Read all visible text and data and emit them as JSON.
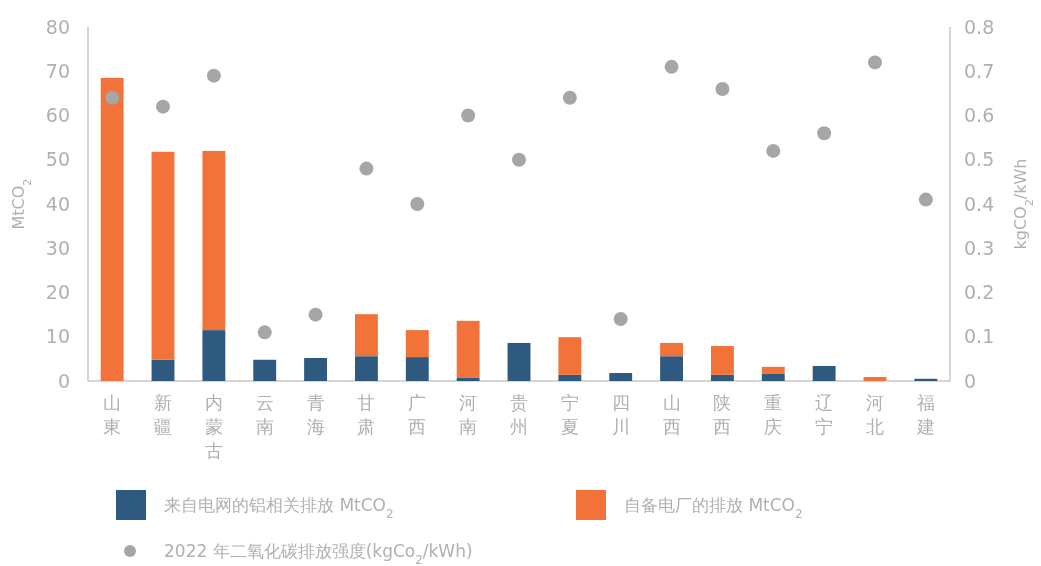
{
  "chart_data": {
    "type": "bar",
    "stacked": true,
    "categories": [
      "山東",
      "新疆",
      "内蒙古",
      "云南",
      "青海",
      "甘肃",
      "广西",
      "河南",
      "贵州",
      "宁夏",
      "四川",
      "山西",
      "陕西",
      "重庆",
      "辽宁",
      "河北",
      "福建"
    ],
    "series": [
      {
        "name": "来自电网的铝相关排放 MtCO$_{2}$",
        "color": "#2e5a80",
        "values": [
          0,
          4.8,
          11.5,
          4.8,
          5.2,
          5.6,
          5.4,
          0.7,
          8.6,
          1.4,
          1.8,
          5.6,
          1.4,
          1.6,
          3.4,
          0,
          0.5
        ]
      },
      {
        "name": "自备电厂的排放 MtCO$_{2}$",
        "color": "#f2733a",
        "values": [
          68.5,
          47.0,
          40.5,
          0,
          0,
          9.5,
          6.1,
          12.9,
          0,
          8.5,
          0,
          3.0,
          6.5,
          1.6,
          0,
          0.9,
          0
        ]
      },
      {
        "name": "2022 年二氧化碳排放强度(kgCo$_{2}$/kWh)",
        "type": "scatter",
        "axis": "y2",
        "marker": "circle",
        "color": "#a6a6a6",
        "values": [
          0.64,
          0.62,
          0.69,
          0.11,
          0.15,
          0.48,
          0.4,
          0.6,
          0.5,
          0.64,
          0.14,
          0.71,
          0.66,
          0.52,
          0.56,
          0.72,
          0.41
        ]
      }
    ],
    "ylabel": "MtCO$_{2}$",
    "y2label": "kgCO$_{2}$/kWh",
    "ylim": [
      0,
      80
    ],
    "yticks": [
      0,
      10,
      20,
      30,
      40,
      50,
      60,
      70,
      80
    ],
    "y2lim": [
      0,
      0.8
    ],
    "y2ticks": [
      "0",
      0.1,
      0.2,
      0.3,
      0.4,
      0.5,
      0.6,
      0.7,
      0.8
    ],
    "grid": false,
    "legend": "bottom"
  }
}
